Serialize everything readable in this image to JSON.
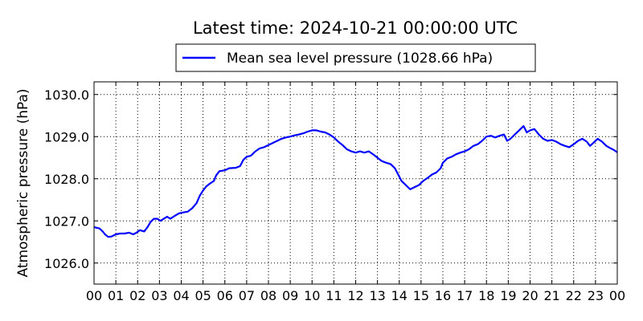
{
  "chart_data": {
    "type": "line",
    "title": "Latest time: 2024-10-21 00:00:00 UTC",
    "xlabel": "",
    "ylabel": "Atmospheric pressure (hPa)",
    "x_tick_labels": [
      "00",
      "01",
      "02",
      "03",
      "04",
      "05",
      "06",
      "07",
      "08",
      "09",
      "10",
      "11",
      "12",
      "13",
      "14",
      "15",
      "16",
      "17",
      "18",
      "19",
      "20",
      "21",
      "22",
      "23",
      "00"
    ],
    "x_unit": "hours (UTC)",
    "xlim": [
      0,
      24
    ],
    "ylim": [
      1025.5,
      1030.3
    ],
    "y_ticks": [
      1026.0,
      1027.0,
      1028.0,
      1029.0,
      1030.0
    ],
    "y_tick_labels": [
      "1026.0",
      "1027.0",
      "1028.0",
      "1029.0",
      "1030.0"
    ],
    "grid": true,
    "legend_position": "top-center",
    "series": [
      {
        "name": "Mean sea level pressure (1028.66 hPa)",
        "color": "#0000ff",
        "points": [
          [
            0.0,
            1026.85
          ],
          [
            0.25,
            1026.82
          ],
          [
            0.4,
            1026.75
          ],
          [
            0.5,
            1026.68
          ],
          [
            0.65,
            1026.62
          ],
          [
            0.8,
            1026.63
          ],
          [
            1.0,
            1026.68
          ],
          [
            1.2,
            1026.7
          ],
          [
            1.4,
            1026.7
          ],
          [
            1.6,
            1026.72
          ],
          [
            1.8,
            1026.68
          ],
          [
            1.95,
            1026.72
          ],
          [
            2.1,
            1026.78
          ],
          [
            2.3,
            1026.75
          ],
          [
            2.45,
            1026.85
          ],
          [
            2.6,
            1026.98
          ],
          [
            2.75,
            1027.05
          ],
          [
            2.9,
            1027.05
          ],
          [
            3.05,
            1027.0
          ],
          [
            3.2,
            1027.05
          ],
          [
            3.35,
            1027.1
          ],
          [
            3.5,
            1027.05
          ],
          [
            3.7,
            1027.12
          ],
          [
            3.9,
            1027.18
          ],
          [
            4.1,
            1027.2
          ],
          [
            4.3,
            1027.22
          ],
          [
            4.5,
            1027.3
          ],
          [
            4.7,
            1027.42
          ],
          [
            4.85,
            1027.6
          ],
          [
            5.0,
            1027.72
          ],
          [
            5.15,
            1027.82
          ],
          [
            5.3,
            1027.88
          ],
          [
            5.5,
            1027.95
          ],
          [
            5.6,
            1028.08
          ],
          [
            5.75,
            1028.18
          ],
          [
            6.0,
            1028.2
          ],
          [
            6.2,
            1028.25
          ],
          [
            6.5,
            1028.26
          ],
          [
            6.7,
            1028.3
          ],
          [
            6.85,
            1028.45
          ],
          [
            7.0,
            1028.52
          ],
          [
            7.2,
            1028.55
          ],
          [
            7.4,
            1028.65
          ],
          [
            7.6,
            1028.72
          ],
          [
            7.8,
            1028.75
          ],
          [
            8.0,
            1028.8
          ],
          [
            8.2,
            1028.85
          ],
          [
            8.4,
            1028.9
          ],
          [
            8.6,
            1028.95
          ],
          [
            8.8,
            1028.98
          ],
          [
            9.0,
            1029.0
          ],
          [
            9.2,
            1029.03
          ],
          [
            9.4,
            1029.05
          ],
          [
            9.6,
            1029.08
          ],
          [
            9.8,
            1029.12
          ],
          [
            10.0,
            1029.15
          ],
          [
            10.2,
            1029.15
          ],
          [
            10.4,
            1029.12
          ],
          [
            10.6,
            1029.1
          ],
          [
            10.8,
            1029.05
          ],
          [
            11.0,
            1028.98
          ],
          [
            11.2,
            1028.88
          ],
          [
            11.4,
            1028.8
          ],
          [
            11.6,
            1028.7
          ],
          [
            11.8,
            1028.65
          ],
          [
            12.0,
            1028.62
          ],
          [
            12.2,
            1028.65
          ],
          [
            12.4,
            1028.62
          ],
          [
            12.6,
            1028.65
          ],
          [
            12.8,
            1028.58
          ],
          [
            13.0,
            1028.5
          ],
          [
            13.2,
            1028.42
          ],
          [
            13.4,
            1028.38
          ],
          [
            13.6,
            1028.35
          ],
          [
            13.8,
            1028.25
          ],
          [
            13.95,
            1028.1
          ],
          [
            14.1,
            1027.95
          ],
          [
            14.3,
            1027.85
          ],
          [
            14.5,
            1027.75
          ],
          [
            14.7,
            1027.8
          ],
          [
            14.9,
            1027.85
          ],
          [
            15.1,
            1027.95
          ],
          [
            15.3,
            1028.02
          ],
          [
            15.5,
            1028.1
          ],
          [
            15.7,
            1028.15
          ],
          [
            15.9,
            1028.25
          ],
          [
            16.0,
            1028.38
          ],
          [
            16.2,
            1028.48
          ],
          [
            16.4,
            1028.52
          ],
          [
            16.6,
            1028.58
          ],
          [
            16.8,
            1028.62
          ],
          [
            17.0,
            1028.65
          ],
          [
            17.2,
            1028.7
          ],
          [
            17.4,
            1028.78
          ],
          [
            17.6,
            1028.82
          ],
          [
            17.8,
            1028.9
          ],
          [
            18.0,
            1029.0
          ],
          [
            18.2,
            1029.02
          ],
          [
            18.4,
            1028.98
          ],
          [
            18.6,
            1029.02
          ],
          [
            18.8,
            1029.05
          ],
          [
            18.95,
            1028.9
          ],
          [
            19.1,
            1028.95
          ],
          [
            19.3,
            1029.05
          ],
          [
            19.5,
            1029.15
          ],
          [
            19.7,
            1029.25
          ],
          [
            19.85,
            1029.1
          ],
          [
            20.0,
            1029.15
          ],
          [
            20.2,
            1029.18
          ],
          [
            20.4,
            1029.05
          ],
          [
            20.6,
            1028.95
          ],
          [
            20.8,
            1028.9
          ],
          [
            21.0,
            1028.92
          ],
          [
            21.2,
            1028.88
          ],
          [
            21.4,
            1028.82
          ],
          [
            21.6,
            1028.78
          ],
          [
            21.8,
            1028.75
          ],
          [
            22.0,
            1028.82
          ],
          [
            22.2,
            1028.9
          ],
          [
            22.4,
            1028.95
          ],
          [
            22.6,
            1028.88
          ],
          [
            22.75,
            1028.78
          ],
          [
            22.9,
            1028.85
          ],
          [
            23.1,
            1028.95
          ],
          [
            23.3,
            1028.88
          ],
          [
            23.5,
            1028.78
          ],
          [
            23.7,
            1028.72
          ],
          [
            23.85,
            1028.68
          ],
          [
            24.0,
            1028.63
          ]
        ]
      }
    ]
  }
}
